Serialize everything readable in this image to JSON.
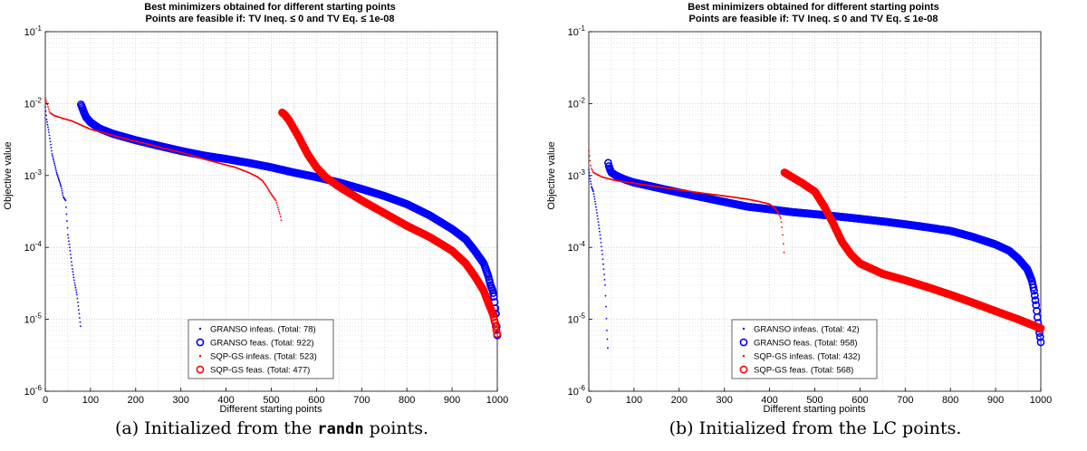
{
  "chart_data": [
    {
      "type": "scatter",
      "title": "Best minimizers obtained for different starting points",
      "subtitle": "Points are feasible if: TV Ineq. ≤ 0 and TV Eq. ≤ 1e-08",
      "xlabel": "Different starting points",
      "ylabel": "Objective value",
      "xlim": [
        0,
        1000
      ],
      "ylim": [
        1e-06,
        0.1
      ],
      "yscale": "log",
      "grid": true,
      "legend_position": "bottom-center",
      "x_ticks": [
        "0",
        "100",
        "200",
        "300",
        "400",
        "500",
        "600",
        "700",
        "800",
        "900",
        "1000"
      ],
      "y_ticks": [
        {
          "base": "10",
          "exp": "-6"
        },
        {
          "base": "10",
          "exp": "-5"
        },
        {
          "base": "10",
          "exp": "-4"
        },
        {
          "base": "10",
          "exp": "-3"
        },
        {
          "base": "10",
          "exp": "-2"
        },
        {
          "base": "10",
          "exp": "-1"
        }
      ],
      "caption_pre": "(a) Initialized from the",
      "caption_code": "randn",
      "caption_post": "points.",
      "series": [
        {
          "name": "GRANSO infeas. (Total: 78)",
          "color": "#0000ff",
          "marker": "dot",
          "points": [
            [
              0,
              0.009
            ],
            [
              3,
              0.006
            ],
            [
              8,
              0.004
            ],
            [
              15,
              0.002
            ],
            [
              25,
              0.0011
            ],
            [
              35,
              0.0007
            ],
            [
              40,
              0.0005
            ],
            [
              45,
              0.00045
            ],
            [
              50,
              0.00015
            ],
            [
              55,
              9e-05
            ],
            [
              60,
              5e-05
            ],
            [
              65,
              3.2e-05
            ],
            [
              70,
              2.2e-05
            ],
            [
              75,
              1.2e-05
            ],
            [
              78,
              8e-06
            ]
          ]
        },
        {
          "name": "GRANSO feas. (Total: 922)",
          "color": "#0000ff",
          "marker": "circle",
          "points": [
            [
              79,
              0.0097
            ],
            [
              85,
              0.0077
            ],
            [
              90,
              0.0065
            ],
            [
              100,
              0.0055
            ],
            [
              120,
              0.0045
            ],
            [
              150,
              0.0038
            ],
            [
              200,
              0.0031
            ],
            [
              250,
              0.0026
            ],
            [
              300,
              0.0022
            ],
            [
              350,
              0.0019
            ],
            [
              400,
              0.0017
            ],
            [
              450,
              0.0015
            ],
            [
              500,
              0.0013
            ],
            [
              550,
              0.0011
            ],
            [
              600,
              0.00095
            ],
            [
              650,
              0.0008
            ],
            [
              700,
              0.00065
            ],
            [
              750,
              0.00052
            ],
            [
              800,
              0.0004
            ],
            [
              850,
              0.00028
            ],
            [
              900,
              0.00018
            ],
            [
              930,
              0.00013
            ],
            [
              950,
              9e-05
            ],
            [
              970,
              6e-05
            ],
            [
              980,
              4e-05
            ],
            [
              985,
              3e-05
            ],
            [
              990,
              2.5e-05
            ],
            [
              993,
              2e-05
            ],
            [
              995,
              1.5e-05
            ],
            [
              997,
              1.2e-05
            ],
            [
              998,
              9e-06
            ],
            [
              999,
              7e-06
            ],
            [
              1000,
              6e-06
            ]
          ]
        },
        {
          "name": "SQP-GS infeas. (Total: 523)",
          "color": "#ff0000",
          "marker": "dot",
          "points": [
            [
              0,
              0.012
            ],
            [
              10,
              0.0075
            ],
            [
              20,
              0.0068
            ],
            [
              40,
              0.0062
            ],
            [
              60,
              0.0057
            ],
            [
              80,
              0.005
            ],
            [
              100,
              0.0044
            ],
            [
              150,
              0.0036
            ],
            [
              200,
              0.003
            ],
            [
              250,
              0.0025
            ],
            [
              300,
              0.0021
            ],
            [
              350,
              0.0017
            ],
            [
              400,
              0.0014
            ],
            [
              420,
              0.0013
            ],
            [
              450,
              0.0011
            ],
            [
              470,
              0.00095
            ],
            [
              480,
              0.00085
            ],
            [
              490,
              0.0007
            ],
            [
              500,
              0.00055
            ],
            [
              510,
              0.00045
            ],
            [
              515,
              0.00035
            ],
            [
              520,
              0.00028
            ],
            [
              523,
              0.00022
            ]
          ]
        },
        {
          "name": "SQP-GS feas. (Total: 477)",
          "color": "#ff0000",
          "marker": "circle",
          "points": [
            [
              524,
              0.0075
            ],
            [
              530,
              0.007
            ],
            [
              540,
              0.0058
            ],
            [
              550,
              0.0045
            ],
            [
              560,
              0.0035
            ],
            [
              580,
              0.002
            ],
            [
              600,
              0.0013
            ],
            [
              620,
              0.00095
            ],
            [
              650,
              0.0007
            ],
            [
              700,
              0.00045
            ],
            [
              750,
              0.0003
            ],
            [
              800,
              0.0002
            ],
            [
              850,
              0.00014
            ],
            [
              900,
              9e-05
            ],
            [
              930,
              6e-05
            ],
            [
              950,
              4e-05
            ],
            [
              970,
              2.5e-05
            ],
            [
              980,
              1.7e-05
            ],
            [
              990,
              1.2e-05
            ],
            [
              995,
              9e-06
            ],
            [
              1000,
              6e-06
            ]
          ]
        }
      ]
    },
    {
      "type": "scatter",
      "title": "Best minimizers obtained for different starting points",
      "subtitle": "Points are feasible if: TV Ineq. ≤ 0 and TV Eq. ≤ 1e-08",
      "xlabel": "Different starting points",
      "ylabel": "Objective value",
      "xlim": [
        0,
        1000
      ],
      "ylim": [
        1e-06,
        0.1
      ],
      "yscale": "log",
      "grid": true,
      "legend_position": "bottom-center",
      "x_ticks": [
        "0",
        "100",
        "200",
        "300",
        "400",
        "500",
        "600",
        "700",
        "800",
        "900",
        "1000"
      ],
      "y_ticks": [
        {
          "base": "10",
          "exp": "-6"
        },
        {
          "base": "10",
          "exp": "-5"
        },
        {
          "base": "10",
          "exp": "-4"
        },
        {
          "base": "10",
          "exp": "-3"
        },
        {
          "base": "10",
          "exp": "-2"
        },
        {
          "base": "10",
          "exp": "-1"
        }
      ],
      "caption_pre": "(b) Initialized from the LC points.",
      "caption_code": "",
      "caption_post": "",
      "series": [
        {
          "name": "GRANSO infeas. (Total: 42)",
          "color": "#0000ff",
          "marker": "dot",
          "points": [
            [
              0,
              0.0012
            ],
            [
              3,
              0.0009
            ],
            [
              6,
              0.0007
            ],
            [
              10,
              0.0006
            ],
            [
              15,
              0.0004
            ],
            [
              20,
              0.00025
            ],
            [
              25,
              0.00015
            ],
            [
              30,
              8e-05
            ],
            [
              33,
              5e-05
            ],
            [
              36,
              3e-05
            ],
            [
              38,
              1.5e-05
            ],
            [
              40,
              7e-06
            ],
            [
              42,
              4e-06
            ]
          ]
        },
        {
          "name": "GRANSO feas. (Total: 958)",
          "color": "#0000ff",
          "marker": "circle",
          "points": [
            [
              43,
              0.0015
            ],
            [
              45,
              0.0013
            ],
            [
              50,
              0.0011
            ],
            [
              60,
              0.001
            ],
            [
              80,
              0.00088
            ],
            [
              100,
              0.0008
            ],
            [
              150,
              0.00068
            ],
            [
              200,
              0.00058
            ],
            [
              250,
              0.0005
            ],
            [
              300,
              0.00043
            ],
            [
              350,
              0.00037
            ],
            [
              400,
              0.00034
            ],
            [
              450,
              0.00031
            ],
            [
              500,
              0.00029
            ],
            [
              550,
              0.00027
            ],
            [
              600,
              0.00025
            ],
            [
              650,
              0.00023
            ],
            [
              700,
              0.00021
            ],
            [
              750,
              0.00019
            ],
            [
              800,
              0.00017
            ],
            [
              850,
              0.00014
            ],
            [
              900,
              0.00011
            ],
            [
              930,
              9e-05
            ],
            [
              950,
              7e-05
            ],
            [
              970,
              5e-05
            ],
            [
              980,
              3.5e-05
            ],
            [
              985,
              2.5e-05
            ],
            [
              990,
              1.5e-05
            ],
            [
              993,
              1e-05
            ],
            [
              996,
              7e-06
            ],
            [
              998,
              6e-06
            ],
            [
              1000,
              4.8e-06
            ]
          ]
        },
        {
          "name": "SQP-GS infeas. (Total: 432)",
          "color": "#ff0000",
          "marker": "dot",
          "points": [
            [
              0,
              0.0022
            ],
            [
              5,
              0.0013
            ],
            [
              10,
              0.0011
            ],
            [
              30,
              0.00095
            ],
            [
              60,
              0.00085
            ],
            [
              100,
              0.00078
            ],
            [
              150,
              0.0007
            ],
            [
              200,
              0.00063
            ],
            [
              250,
              0.00057
            ],
            [
              300,
              0.00052
            ],
            [
              350,
              0.00047
            ],
            [
              380,
              0.00043
            ],
            [
              400,
              0.0004
            ],
            [
              410,
              0.00036
            ],
            [
              420,
              0.0003
            ],
            [
              425,
              0.00025
            ],
            [
              428,
              0.00018
            ],
            [
              432,
              8.5e-05
            ]
          ]
        },
        {
          "name": "SQP-GS feas. (Total: 568)",
          "color": "#ff0000",
          "marker": "circle",
          "points": [
            [
              433,
              0.0011
            ],
            [
              450,
              0.00095
            ],
            [
              470,
              0.0008
            ],
            [
              500,
              0.0006
            ],
            [
              520,
              0.00038
            ],
            [
              540,
              0.00022
            ],
            [
              560,
              0.00012
            ],
            [
              580,
              8e-05
            ],
            [
              600,
              6e-05
            ],
            [
              650,
              4.3e-05
            ],
            [
              700,
              3.5e-05
            ],
            [
              750,
              2.8e-05
            ],
            [
              800,
              2.2e-05
            ],
            [
              850,
              1.7e-05
            ],
            [
              900,
              1.3e-05
            ],
            [
              950,
              1e-05
            ],
            [
              1000,
              7.5e-06
            ]
          ]
        }
      ]
    }
  ]
}
